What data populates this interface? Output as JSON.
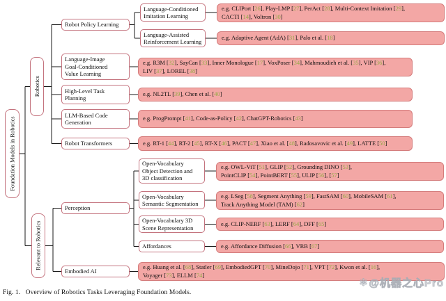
{
  "caption": "Fig. 1.   Overview of Robotics Tasks Leveraging Foundation Models.",
  "watermark": {
    "logo": "✻",
    "text": "@机器之心Pro"
  },
  "colors": {
    "leaf_fill": "#f3a7a5",
    "leaf_border": "#d47c7c",
    "box_border": "#c4737e",
    "line": "#1a1a1a",
    "cite": "#95ab47"
  },
  "nodes": {
    "root": "Foundation Models in Robotics",
    "robotics": "Robotics",
    "relevant": "Relevant to Robotics",
    "robot_policy_learning": "Robot Policy Learning",
    "lang_cond_imitation": "Language-Conditioned Imitation Learning",
    "lang_assist_rl": "Language-Assisted Reinforcement Learning",
    "lang_image_value": "Language-Image Goal-Conditioned Value Learning",
    "task_planning": "High-Level Task Planning",
    "code_generation": "LLM-Based Code Generation",
    "robot_transformers": "Robot Transformers",
    "perception": "Perception",
    "ovod": "Open-Vocabulary Object Detection and 3D classification",
    "ovss": "Open-Vocabulary Semantic Segmentation",
    "ov3d": "Open-Vocabulary 3D Scene Representation",
    "affordances": "Affordances",
    "embodied_ai": "Embodied AI"
  },
  "leaves": {
    "lci": {
      "prefix": "e.g.",
      "items": [
        {
          "name": "CLIPort",
          "cites": [
            "26"
          ]
        },
        {
          "name": "Play-LMP",
          "cites": [
            "27"
          ]
        },
        {
          "name": "PerAct",
          "cites": [
            "28"
          ]
        },
        {
          "name": "Multi-Context Imitation",
          "cites": [
            "29"
          ],
          "br": true
        },
        {
          "name": "CACTI",
          "cites": [
            "14"
          ]
        },
        {
          "name": "Voltron",
          "cites": [
            "30"
          ]
        }
      ]
    },
    "lar": {
      "prefix": "e.g.",
      "items": [
        {
          "name": "Adaptive Agent (AdA)",
          "cites": [
            "31"
          ]
        },
        {
          "name": "Palo et al.",
          "cites": [
            "18"
          ]
        }
      ]
    },
    "ligcvl": {
      "prefix": "e.g.",
      "items": [
        {
          "name": "R3M",
          "cites": [
            "32"
          ]
        },
        {
          "name": "SayCan",
          "cites": [
            "33"
          ]
        },
        {
          "name": "Inner Monologue",
          "cites": [
            "17"
          ]
        },
        {
          "name": "VoxPoser",
          "cites": [
            "34"
          ]
        },
        {
          "name": "Mahmoudieh et al.",
          "cites": [
            "35"
          ]
        },
        {
          "name": "VIP",
          "cites": [
            "36"
          ],
          "br": true
        },
        {
          "name": "LIV",
          "cites": [
            "37"
          ]
        },
        {
          "name": "LOREL",
          "cites": [
            "38"
          ]
        }
      ]
    },
    "hltp": {
      "prefix": "e.g.",
      "items": [
        {
          "name": "NL2TL",
          "cites": [
            "39"
          ]
        },
        {
          "name": "Chen et al.",
          "cites": [
            "40"
          ]
        }
      ]
    },
    "llmcg": {
      "prefix": "e.g.",
      "items": [
        {
          "name": "ProgPrompt",
          "cites": [
            "41"
          ]
        },
        {
          "name": "Code-as-Policy",
          "cites": [
            "42"
          ]
        },
        {
          "name": "ChatGPT-Robotics",
          "cites": [
            "43"
          ]
        }
      ]
    },
    "rt": {
      "prefix": "e.g.",
      "items": [
        {
          "name": "RT-1",
          "cites": [
            "44"
          ]
        },
        {
          "name": "RT-2",
          "cites": [
            "45"
          ]
        },
        {
          "name": "RT-X",
          "cites": [
            "46"
          ]
        },
        {
          "name": "PACT",
          "cites": [
            "47"
          ]
        },
        {
          "name": "Xiao et al.",
          "cites": [
            "48"
          ]
        },
        {
          "name": "Radosavovic et al.",
          "cites": [
            "49"
          ]
        },
        {
          "name": "LATTE",
          "cites": [
            "50"
          ]
        }
      ]
    },
    "ovod": {
      "prefix": "e.g.",
      "items": [
        {
          "name": "OWL-ViT",
          "cites": [
            "51"
          ]
        },
        {
          "name": "GLIP",
          "cites": [
            "52"
          ]
        },
        {
          "name": "Grounding DINO",
          "cites": [
            "53"
          ],
          "br": true
        },
        {
          "name": "PointCLIP",
          "cites": [
            "54"
          ]
        },
        {
          "name": "PointBERT",
          "cites": [
            "55"
          ]
        },
        {
          "name": "ULIP",
          "cites": [
            "56",
            "57"
          ]
        }
      ]
    },
    "ovss": {
      "prefix": "e.g.",
      "items": [
        {
          "name": "LSeg",
          "cites": [
            "58"
          ]
        },
        {
          "name": "Segment Anything",
          "cites": [
            "59"
          ]
        },
        {
          "name": "FastSAM",
          "cites": [
            "60"
          ]
        },
        {
          "name": "MobileSAM",
          "cites": [
            "61"
          ],
          "br": true
        },
        {
          "name": "Track Anything Model (TAM)",
          "cites": [
            "62"
          ]
        }
      ]
    },
    "ov3d": {
      "prefix": "e.g.",
      "items": [
        {
          "name": "CLIP-NERF",
          "cites": [
            "63"
          ]
        },
        {
          "name": "LERF",
          "cites": [
            "64"
          ]
        },
        {
          "name": "DFF",
          "cites": [
            "65"
          ]
        }
      ]
    },
    "aff": {
      "prefix": "e.g.",
      "items": [
        {
          "name": "Affordance Diffusion",
          "cites": [
            "66"
          ]
        },
        {
          "name": "VRB",
          "cites": [
            "67"
          ]
        }
      ]
    },
    "eai": {
      "prefix": "e.g.",
      "items": [
        {
          "name": "Huang et al.",
          "cites": [
            "68"
          ]
        },
        {
          "name": "Statler",
          "cites": [
            "69"
          ]
        },
        {
          "name": "EmbodiedGPT",
          "cites": [
            "70"
          ]
        },
        {
          "name": "MineDojo",
          "cites": [
            "71"
          ]
        },
        {
          "name": "VPT",
          "cites": [
            "72"
          ]
        },
        {
          "name": "Kwon et al.",
          "cites": [
            "16"
          ],
          "br": true
        },
        {
          "name": "Voyager",
          "cites": [
            "73"
          ]
        },
        {
          "name": "ELLM",
          "cites": [
            "74"
          ]
        }
      ]
    }
  }
}
